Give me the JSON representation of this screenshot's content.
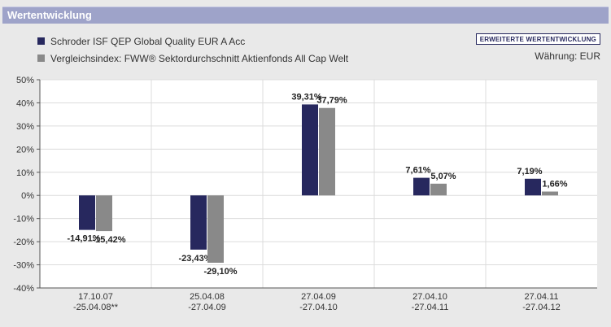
{
  "header": {
    "title": "Wertentwicklung"
  },
  "legend": [
    {
      "label": "Schroder ISF QEP Global Quality EUR A Acc",
      "color": "#27285e"
    },
    {
      "label": "Vergleichsindex: FWW® Sektordurchschnitt Aktienfonds All Cap Welt",
      "color": "#898989"
    }
  ],
  "toolbar": {
    "extended_label": "ERWEITERTE WERTENTWICKLUNG"
  },
  "currency": {
    "label": "Währung: EUR"
  },
  "chart_data": {
    "type": "bar",
    "categories": [
      [
        "17.10.07",
        "-25.04.08**"
      ],
      [
        "25.04.08",
        "-27.04.09"
      ],
      [
        "27.04.09",
        "-27.04.10"
      ],
      [
        "27.04.10",
        "-27.04.11"
      ],
      [
        "27.04.11",
        "-27.04.12"
      ]
    ],
    "series": [
      {
        "name": "Schroder ISF QEP Global Quality EUR A Acc",
        "color": "#27285e",
        "values": [
          -14.91,
          -23.43,
          39.31,
          7.61,
          7.19
        ],
        "labels": [
          "-14,91%",
          "-23,43%",
          "39,31%",
          "7,61%",
          "7,19%"
        ]
      },
      {
        "name": "Vergleichsindex: FWW® Sektordurchschnitt Aktienfonds All Cap Welt",
        "color": "#898989",
        "values": [
          -15.42,
          -29.1,
          37.79,
          5.07,
          1.66
        ],
        "labels": [
          "-15,42%",
          "-29,10%",
          "37,79%",
          "5,07%",
          "1,66%"
        ]
      }
    ],
    "ylim": [
      -40,
      50
    ],
    "yticks": [
      50,
      40,
      30,
      20,
      10,
      0,
      -10,
      -20,
      -30,
      -40
    ],
    "ytick_labels": [
      "50%",
      "40%",
      "30%",
      "20%",
      "10%",
      "0%",
      "-10%",
      "-20%",
      "-30%",
      "-40%"
    ],
    "grid": true,
    "title": "",
    "xlabel": "",
    "ylabel": ""
  }
}
